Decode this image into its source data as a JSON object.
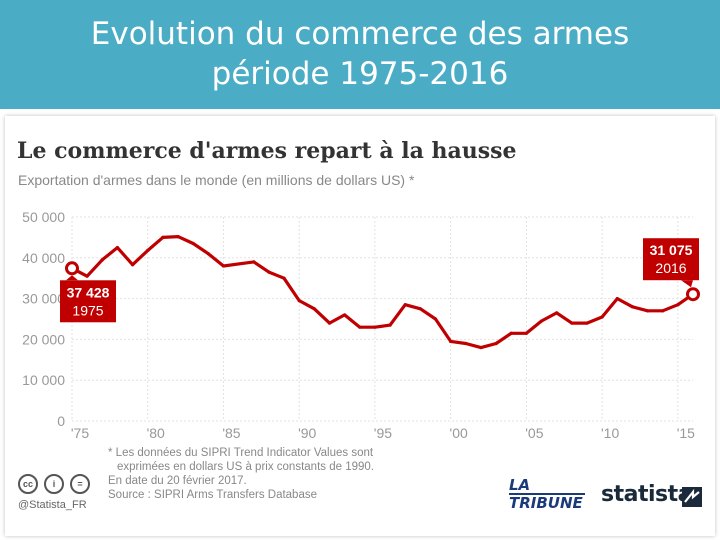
{
  "banner": {
    "line1": "Evolution du commerce des armes",
    "line2": "période 1975-2016",
    "color": "#4bacc6"
  },
  "chart_data": {
    "type": "line",
    "title": "Le commerce d'armes repart à la hausse",
    "subtitle": "Exportation d'armes dans le monde (en millions de dollars US) *",
    "xlabel": "",
    "ylabel": "",
    "xlim": [
      1975,
      2016
    ],
    "ylim": [
      0,
      50000
    ],
    "grid": true,
    "line_color": "#c00000",
    "y_ticks": [
      0,
      10000,
      20000,
      30000,
      40000,
      50000
    ],
    "y_tick_labels": [
      "0",
      "10 000",
      "20 000",
      "30 000",
      "40 000",
      "50 000"
    ],
    "x_ticks": [
      1975,
      1980,
      1985,
      1990,
      1995,
      2000,
      2005,
      2010,
      2015
    ],
    "x_tick_labels": [
      "'75",
      "'80",
      "'85",
      "'90",
      "'95",
      "'00",
      "'05",
      "'10",
      "'15"
    ],
    "x": [
      1975,
      1976,
      1977,
      1978,
      1979,
      1980,
      1981,
      1982,
      1983,
      1984,
      1985,
      1986,
      1987,
      1988,
      1989,
      1990,
      1991,
      1992,
      1993,
      1994,
      1995,
      1996,
      1997,
      1998,
      1999,
      2000,
      2001,
      2002,
      2003,
      2004,
      2005,
      2006,
      2007,
      2008,
      2009,
      2010,
      2011,
      2012,
      2013,
      2014,
      2015,
      2016
    ],
    "values": [
      37428,
      35500,
      39500,
      42500,
      38300,
      41800,
      45000,
      45200,
      43500,
      41000,
      38000,
      38500,
      39000,
      36500,
      35000,
      29500,
      27500,
      24000,
      26000,
      23000,
      23000,
      23500,
      28500,
      27500,
      25000,
      19500,
      19000,
      18000,
      19000,
      21500,
      21500,
      24500,
      26500,
      24000,
      24000,
      25500,
      30000,
      28000,
      27000,
      27000,
      28500,
      31075
    ],
    "annotations": [
      {
        "year": 1975,
        "value_label": "37 428",
        "year_label": "1975",
        "side": "left"
      },
      {
        "year": 2016,
        "value_label": "31 075",
        "year_label": "2016",
        "side": "right"
      }
    ]
  },
  "footer": {
    "note_1": "* Les données du SIPRI Trend Indicator Values sont",
    "note_2": "exprimées en dollars US à prix constants de 1990.",
    "note_3": "En date du 20 février 2017.",
    "note_4": "Source : SIPRI Arms Transfers Database",
    "cc_icons": [
      "cc",
      "i",
      "="
    ],
    "handle": "@Statista_FR",
    "logo_la": "LA",
    "logo_tribune": "TRIBUNE",
    "logo_statista": "statista"
  }
}
